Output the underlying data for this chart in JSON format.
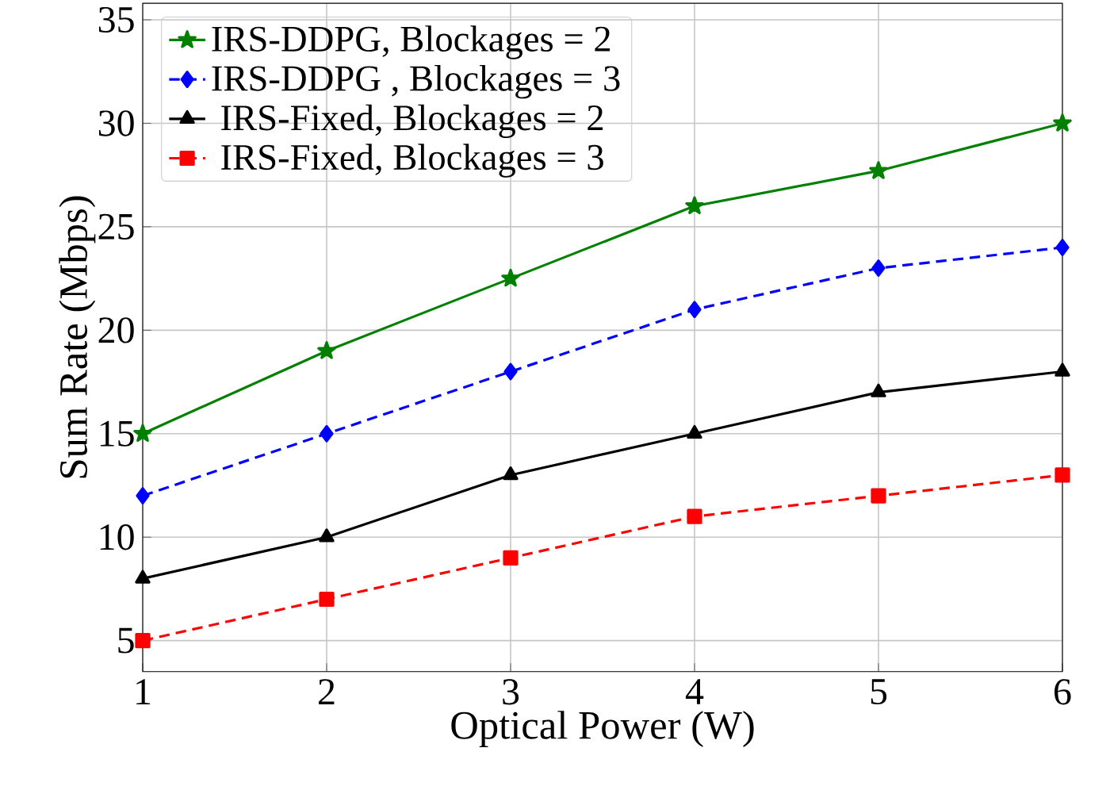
{
  "chart_data": {
    "type": "line",
    "xlabel": "Optical Power (W)",
    "ylabel": "Sum Rate (Mbps)",
    "x": [
      1,
      2,
      3,
      4,
      5,
      6
    ],
    "xlim": [
      1,
      6
    ],
    "ylim": [
      3.5,
      35.8
    ],
    "xticks": [
      1,
      2,
      3,
      4,
      5,
      6
    ],
    "yticks": [
      5,
      10,
      15,
      20,
      25,
      30,
      35
    ],
    "grid": true,
    "legend": "top left",
    "series": [
      {
        "name": "IRS-DDPG, Blockages = 2",
        "color": "#008000",
        "marker": "star",
        "line_style": "solid",
        "values": [
          15,
          19,
          22.5,
          26,
          27.7,
          30
        ]
      },
      {
        "name": "IRS-DDPG , Blockages = 3",
        "color": "#0000ff",
        "marker": "diamond",
        "line_style": "dashed",
        "values": [
          12,
          15,
          18,
          21,
          23,
          24
        ]
      },
      {
        "name": " IRS-Fixed, Blockages = 2",
        "color": "#000000",
        "marker": "triangle",
        "line_style": "solid",
        "values": [
          8,
          10,
          13,
          15,
          17,
          18
        ]
      },
      {
        "name": " IRS-Fixed, Blockages = 3",
        "color": "#ff0000",
        "marker": "square",
        "line_style": "dashed",
        "values": [
          5,
          7,
          9,
          11,
          12,
          13
        ]
      }
    ]
  }
}
